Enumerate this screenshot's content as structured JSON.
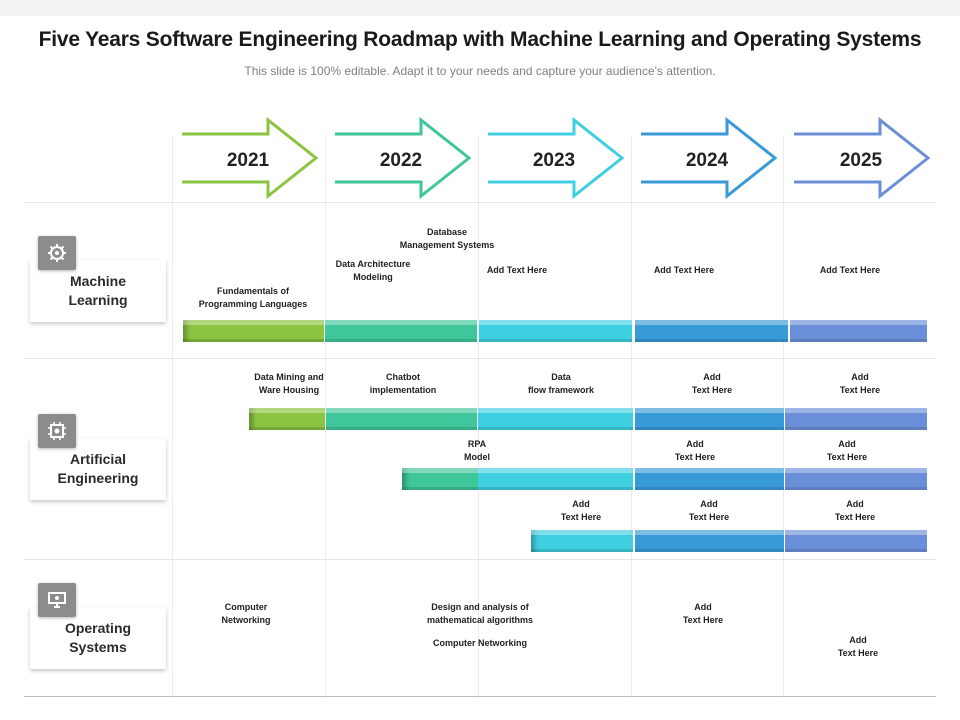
{
  "title": "Five Years Software Engineering Roadmap with Machine Learning and Operating Systems",
  "subtitle": "This slide is 100% editable. Adapt it to your needs and capture your audience's attention.",
  "years": [
    "2021",
    "2022",
    "2023",
    "2024",
    "2025"
  ],
  "colors": {
    "y2021": "#8ac440",
    "y2022": "#3fc79b",
    "y2023": "#3ecfe0",
    "y2024": "#389ad6",
    "y2025": "#6a8fd8"
  },
  "categories": [
    {
      "label": "Machine\nLearning",
      "icon": "brain-gear-icon"
    },
    {
      "label": "Artificial\nEngineering",
      "icon": "chip-gear-icon"
    },
    {
      "label": "Operating\nSystems",
      "icon": "computer-settings-icon"
    }
  ],
  "ml": {
    "fundamentals": "Fundamentals of\nProgramming Languages",
    "data_architecture": "Data Architecture\nModeling",
    "database": "Database\nManagement Systems",
    "add_2023": "Add Text Here",
    "add_2024": "Add Text Here",
    "add_2025": "Add Text Here"
  },
  "ae": {
    "data_mining": "Data Mining and\nWare Housing",
    "chatbot": "Chatbot\nimplementation",
    "data_flow": "Data\nflow framework",
    "r1_2024": "Add\nText Here",
    "r1_2025": "Add\nText Here",
    "rpa": "RPA\nModel",
    "r2_2024": "Add\nText Here",
    "r2_2025": "Add\nText Here",
    "r3_2023": "Add\nText Here",
    "r3_2024": "Add\nText Here",
    "r3_2025": "Add\nText Here"
  },
  "os": {
    "computer_networking_1": "Computer\nNetworking",
    "design_analysis": "Design and analysis of\nmathematical  algorithms",
    "computer_networking_2": "Computer Networking",
    "add_2024": "Add\nText Here",
    "add_2025": "Add\nText Here"
  }
}
